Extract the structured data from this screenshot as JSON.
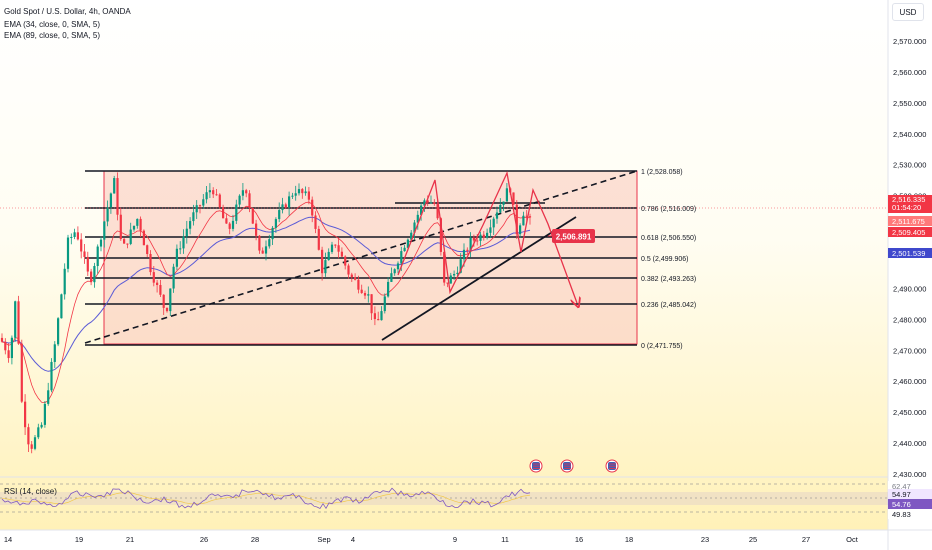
{
  "legend": {
    "symbol": "Gold Spot / U.S. Dollar, 4h, OANDA",
    "ema1": "EMA (34, close, 0, SMA, 5)",
    "ema2": "EMA (89, close, 0, SMA, 5)",
    "rsi": "RSI (14, close)"
  },
  "currency": "USD",
  "price_axis": [
    "2,570.000",
    "2,560.000",
    "2,550.000",
    "2,540.000",
    "2,530.000",
    "2,490.000",
    "2,480.000",
    "2,470.000",
    "2,460.000",
    "2,450.000",
    "2,440.000",
    "2,430.000"
  ],
  "price_axis_top": "2,520.000",
  "time_axis": [
    "14",
    "19",
    "21",
    "26",
    "28",
    "Sep",
    "4",
    "9",
    "11",
    "16",
    "18",
    "23",
    "25",
    "27",
    "Oct"
  ],
  "fib_levels": [
    {
      "ratio": "1",
      "price": "2,528.058"
    },
    {
      "ratio": "0.786",
      "price": "2,516.009"
    },
    {
      "ratio": "0.618",
      "price": "2,506.550"
    },
    {
      "ratio": "0.5",
      "price": "2,499.906"
    },
    {
      "ratio": "0.382",
      "price": "2,493.263"
    },
    {
      "ratio": "0.236",
      "price": "2,485.042"
    },
    {
      "ratio": "0",
      "price": "2,471.755"
    }
  ],
  "price_label": "2,506.891",
  "badges": {
    "last_price": "2,516.335",
    "countdown": "01:54:20",
    "ema34": "2,511.675",
    "level_red": "2,509.405",
    "ema89": "2,501.539"
  },
  "rsi_values": [
    "54.97",
    "54.76",
    "49.83"
  ],
  "rsi_top_partial": "62.47",
  "colors": {
    "bull": "#089981",
    "bear": "#f23645",
    "ema34": "#f23645",
    "ema89": "#5b5bd6",
    "zone_fill": "#f9c6b8",
    "arrow": "#e8334a",
    "rsi_line": "#7e57c2",
    "rsi_band": "#b39ddb"
  }
}
